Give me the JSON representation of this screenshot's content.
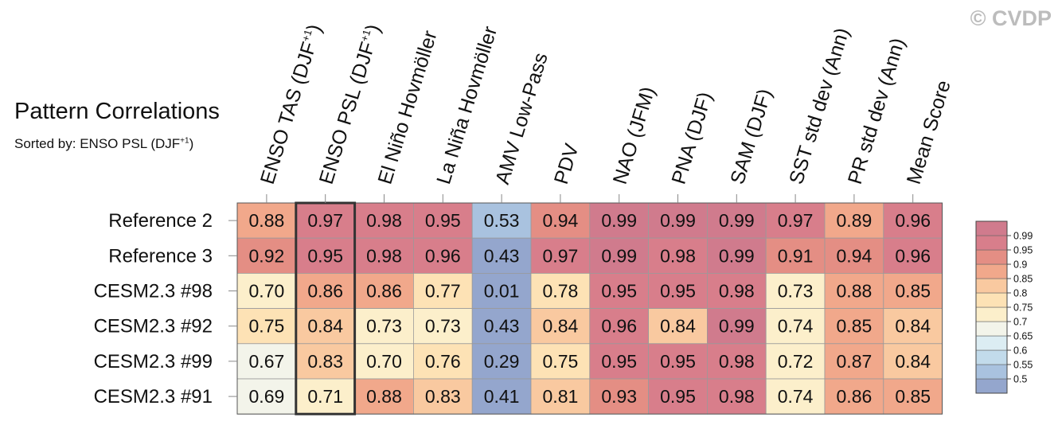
{
  "watermark": "© CVDP",
  "title": "Pattern Correlations",
  "subtitle_text": "Sorted by: ENSO PSL (DJF",
  "subtitle_sup": "+1",
  "subtitle_end": ")",
  "chart_data": {
    "type": "heatmap",
    "title": "Pattern Correlations",
    "subtitle": "Sorted by: ENSO PSL (DJF+1)",
    "columns": [
      {
        "label": "ENSO TAS (DJF",
        "sup": "+1",
        "end": ")"
      },
      {
        "label": "ENSO PSL (DJF",
        "sup": "+1",
        "end": ")"
      },
      {
        "label": "El Niño Hovmöller"
      },
      {
        "label": "La Niña Hovmöller"
      },
      {
        "label": "AMV Low-Pass"
      },
      {
        "label": "PDV"
      },
      {
        "label": "NAO (JFM)"
      },
      {
        "label": "PNA (DJF)"
      },
      {
        "label": "SAM (DJF)"
      },
      {
        "label": "SST std dev (Ann)"
      },
      {
        "label": "PR std dev (Ann)"
      },
      {
        "label": "Mean Score"
      }
    ],
    "rows": [
      "Reference 2",
      "Reference 3",
      "CESM2.3 #98",
      "CESM2.3 #92",
      "CESM2.3 #99",
      "CESM2.3 #91"
    ],
    "values": [
      [
        "0.88",
        "0.97",
        "0.98",
        "0.95",
        "0.53",
        "0.94",
        "0.99",
        "0.99",
        "0.99",
        "0.97",
        "0.89",
        "0.96"
      ],
      [
        "0.92",
        "0.95",
        "0.98",
        "0.96",
        "0.43",
        "0.97",
        "0.99",
        "0.98",
        "0.99",
        "0.91",
        "0.94",
        "0.96"
      ],
      [
        "0.70",
        "0.86",
        "0.86",
        "0.77",
        "0.01",
        "0.78",
        "0.95",
        "0.95",
        "0.98",
        "0.73",
        "0.88",
        "0.85"
      ],
      [
        "0.75",
        "0.84",
        "0.73",
        "0.73",
        "0.43",
        "0.84",
        "0.96",
        "0.84",
        "0.99",
        "0.74",
        "0.85",
        "0.84"
      ],
      [
        "0.67",
        "0.83",
        "0.70",
        "0.76",
        "0.29",
        "0.75",
        "0.95",
        "0.95",
        "0.98",
        "0.72",
        "0.87",
        "0.84"
      ],
      [
        "0.69",
        "0.71",
        "0.88",
        "0.83",
        "0.41",
        "0.81",
        "0.93",
        "0.95",
        "0.98",
        "0.74",
        "0.86",
        "0.85"
      ]
    ],
    "highlighted_column_index": 1,
    "colorbar": {
      "labels": [
        "0.99",
        "0.95",
        "0.9",
        "0.85",
        "0.8",
        "0.75",
        "0.7",
        "0.65",
        "0.6",
        "0.55",
        "0.5"
      ],
      "levels": [
        0.5,
        0.55,
        0.6,
        0.65,
        0.7,
        0.75,
        0.8,
        0.85,
        0.9,
        0.95,
        0.99
      ],
      "colors": [
        "#94a6cd",
        "#a9c2df",
        "#c2dbeb",
        "#dcedf3",
        "#f3f4ea",
        "#fcefcb",
        "#fde2b5",
        "#f9c9a0",
        "#f1a88b",
        "#e48e84",
        "#d87e8b",
        "#d07b8d"
      ]
    }
  }
}
